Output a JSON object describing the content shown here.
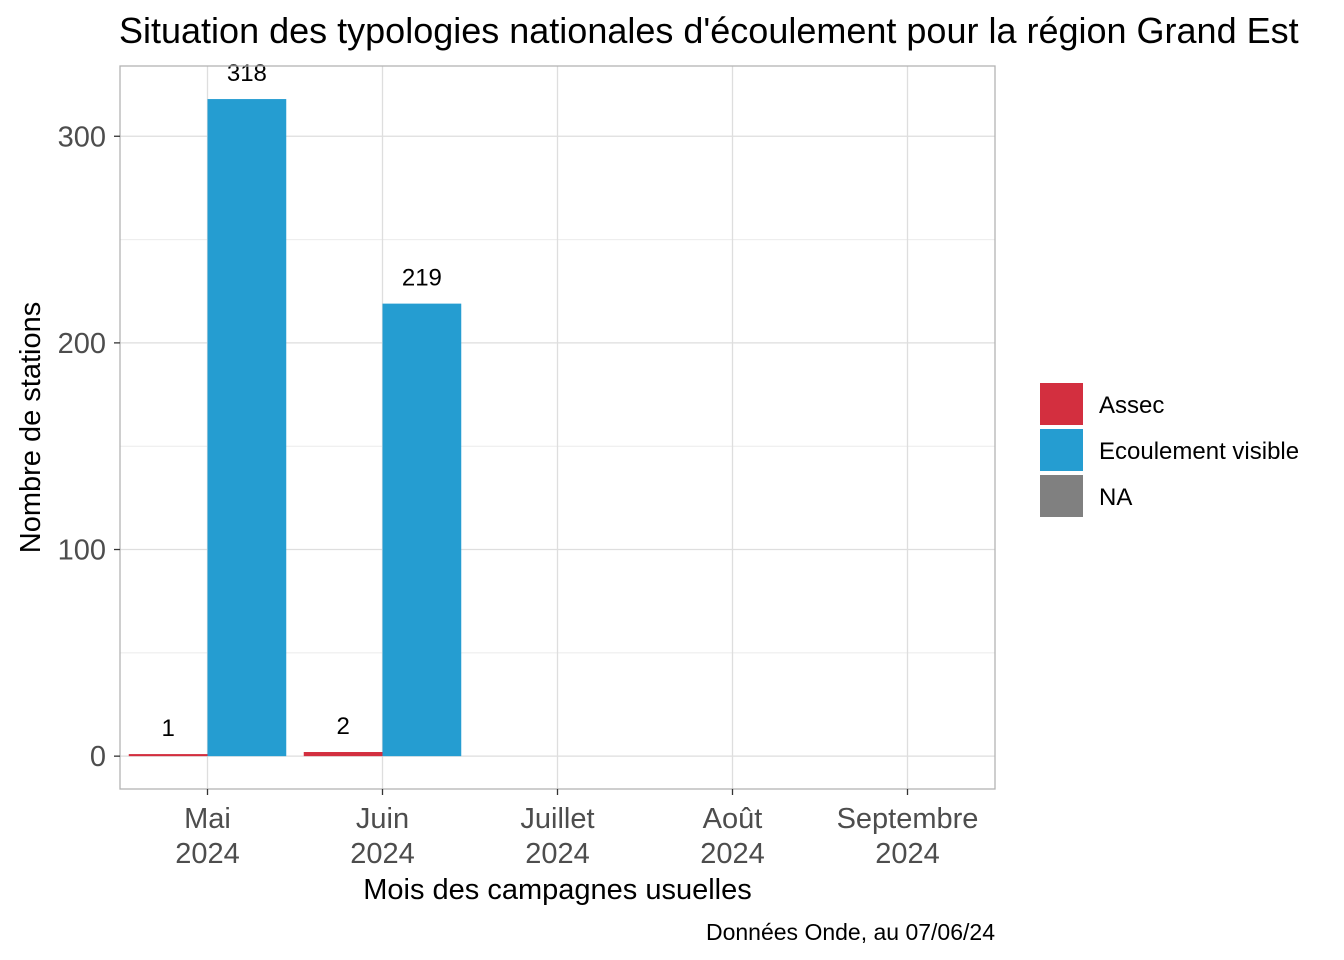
{
  "chart_data": {
    "type": "bar",
    "title": "Situation des typologies nationales d'écoulement pour la région Grand Est",
    "xlabel": "Mois des campagnes usuelles",
    "ylabel": "Nombre de stations",
    "caption": "Données Onde, au 07/06/24",
    "categories": [
      [
        "Mai",
        "2024"
      ],
      [
        "Juin",
        "2024"
      ],
      [
        "Juillet",
        "2024"
      ],
      [
        "Août",
        "2024"
      ],
      [
        "Septembre",
        "2024"
      ]
    ],
    "series": [
      {
        "name": "Assec",
        "color": "#d32f3f",
        "values": [
          1,
          2,
          null,
          null,
          null
        ]
      },
      {
        "name": "Ecoulement visible",
        "color": "#259dd1",
        "values": [
          318,
          219,
          null,
          null,
          null
        ]
      },
      {
        "name": "NA",
        "color": "#808080",
        "values": [
          null,
          null,
          null,
          null,
          null
        ]
      }
    ],
    "ylim": [
      -15.9,
      334
    ],
    "yticks": [
      0,
      100,
      200,
      300
    ],
    "grid": true,
    "legend_position": "right"
  }
}
